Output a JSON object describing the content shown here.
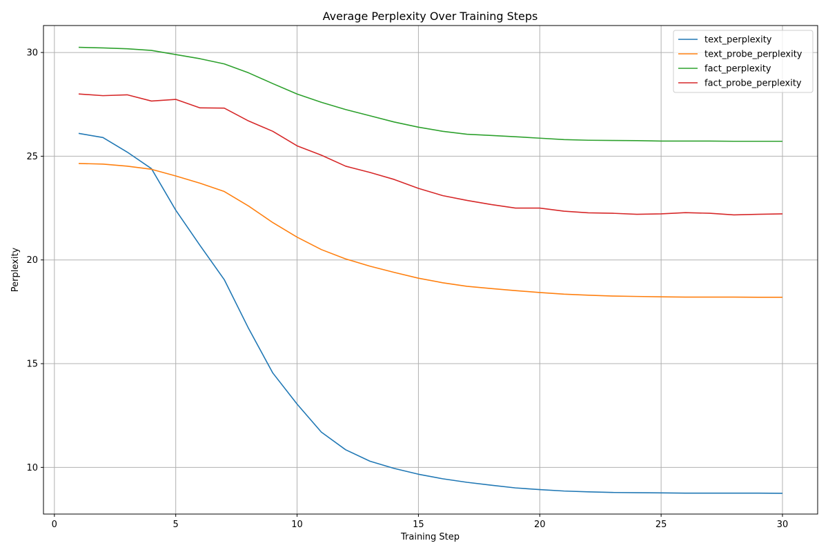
{
  "chart_data": {
    "type": "line",
    "title": "Average Perplexity Over Training Steps",
    "xlabel": "Training Step",
    "ylabel": "Perplexity",
    "xlim": [
      -0.45,
      31.45
    ],
    "ylim": [
      7.75,
      31.3
    ],
    "xticks": [
      0,
      5,
      10,
      15,
      20,
      25,
      30
    ],
    "yticks": [
      10,
      15,
      20,
      25,
      30
    ],
    "grid": true,
    "legend_position": "top-right",
    "x": [
      1,
      2,
      3,
      4,
      5,
      6,
      7,
      8,
      9,
      10,
      11,
      12,
      13,
      14,
      15,
      16,
      17,
      18,
      19,
      20,
      21,
      22,
      23,
      24,
      25,
      26,
      27,
      28,
      29,
      30
    ],
    "series": [
      {
        "name": "text_perplexity",
        "color": "#1f77b4",
        "values": [
          26.1,
          25.9,
          25.2,
          24.4,
          22.4,
          20.7,
          19.05,
          16.7,
          14.55,
          13.05,
          11.7,
          10.85,
          10.3,
          9.95,
          9.67,
          9.45,
          9.28,
          9.14,
          9.01,
          8.93,
          8.86,
          8.82,
          8.79,
          8.78,
          8.77,
          8.76,
          8.76,
          8.76,
          8.76,
          8.75
        ]
      },
      {
        "name": "text_probe_perplexity",
        "color": "#ff7f0e",
        "values": [
          24.65,
          24.62,
          24.52,
          24.37,
          24.05,
          23.7,
          23.3,
          22.6,
          21.8,
          21.1,
          20.5,
          20.05,
          19.7,
          19.4,
          19.12,
          18.9,
          18.73,
          18.62,
          18.52,
          18.43,
          18.35,
          18.3,
          18.26,
          18.24,
          18.22,
          18.21,
          18.21,
          18.21,
          18.2,
          18.2
        ]
      },
      {
        "name": "fact_perplexity",
        "color": "#2ca02c",
        "values": [
          30.25,
          30.22,
          30.18,
          30.1,
          29.9,
          29.7,
          29.45,
          29.02,
          28.5,
          28.0,
          27.6,
          27.25,
          26.95,
          26.65,
          26.4,
          26.2,
          26.06,
          26.0,
          25.94,
          25.87,
          25.8,
          25.77,
          25.76,
          25.75,
          25.73,
          25.73,
          25.73,
          25.72,
          25.72,
          25.72
        ]
      },
      {
        "name": "fact_probe_perplexity",
        "color": "#d62728",
        "values": [
          28.0,
          27.92,
          27.96,
          27.66,
          27.74,
          27.33,
          27.32,
          26.7,
          26.2,
          25.5,
          25.05,
          24.52,
          24.22,
          23.88,
          23.45,
          23.1,
          22.87,
          22.67,
          22.5,
          22.5,
          22.35,
          22.27,
          22.25,
          22.2,
          22.22,
          22.28,
          22.25,
          22.17,
          22.2,
          22.22
        ]
      }
    ]
  }
}
